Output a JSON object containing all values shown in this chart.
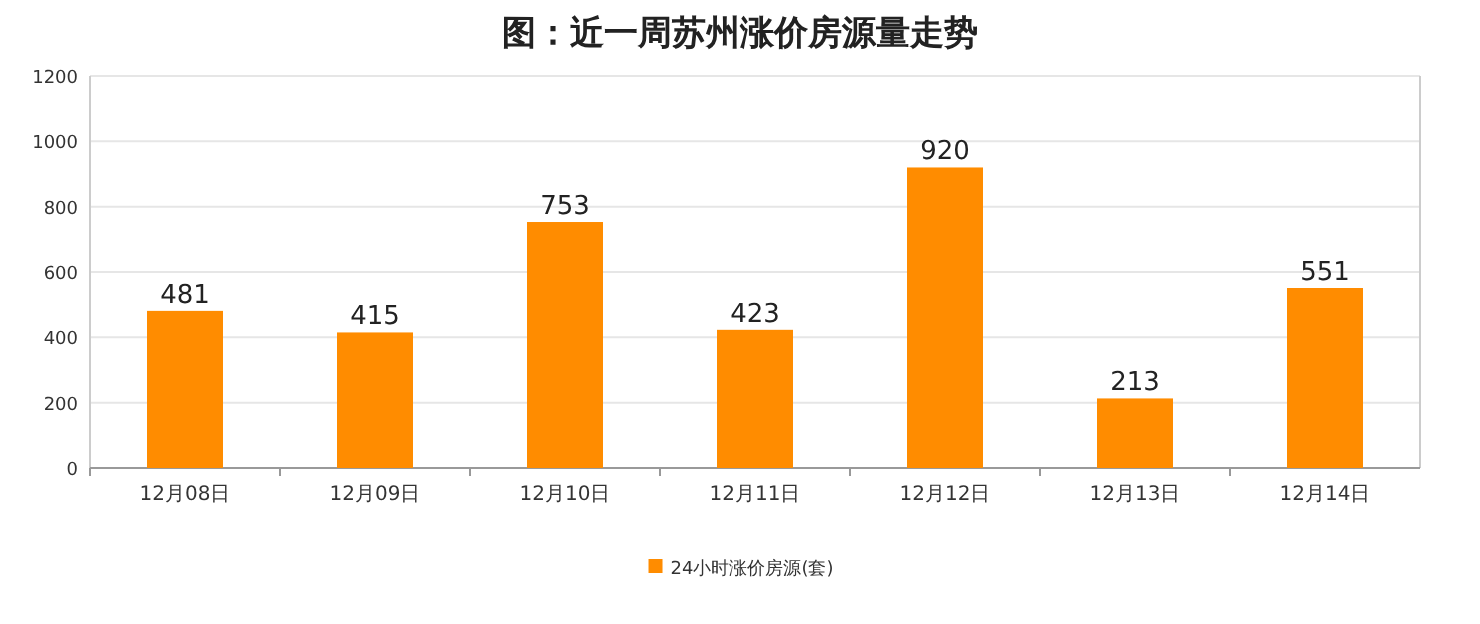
{
  "chart_data": {
    "type": "bar",
    "title": "图：近一周苏州涨价房源量走势",
    "categories": [
      "12月08日",
      "12月09日",
      "12月10日",
      "12月11日",
      "12月12日",
      "12月13日",
      "12月14日"
    ],
    "series": [
      {
        "name": "24小时涨价房源(套)",
        "color": "#ff8c00",
        "values": [
          481,
          415,
          753,
          423,
          920,
          213,
          551
        ]
      }
    ],
    "ylim": [
      0,
      1200
    ],
    "yticks": [
      0,
      200,
      400,
      600,
      800,
      1000,
      1200
    ],
    "grid": "y",
    "legend": "bottom",
    "data_labels": true
  }
}
